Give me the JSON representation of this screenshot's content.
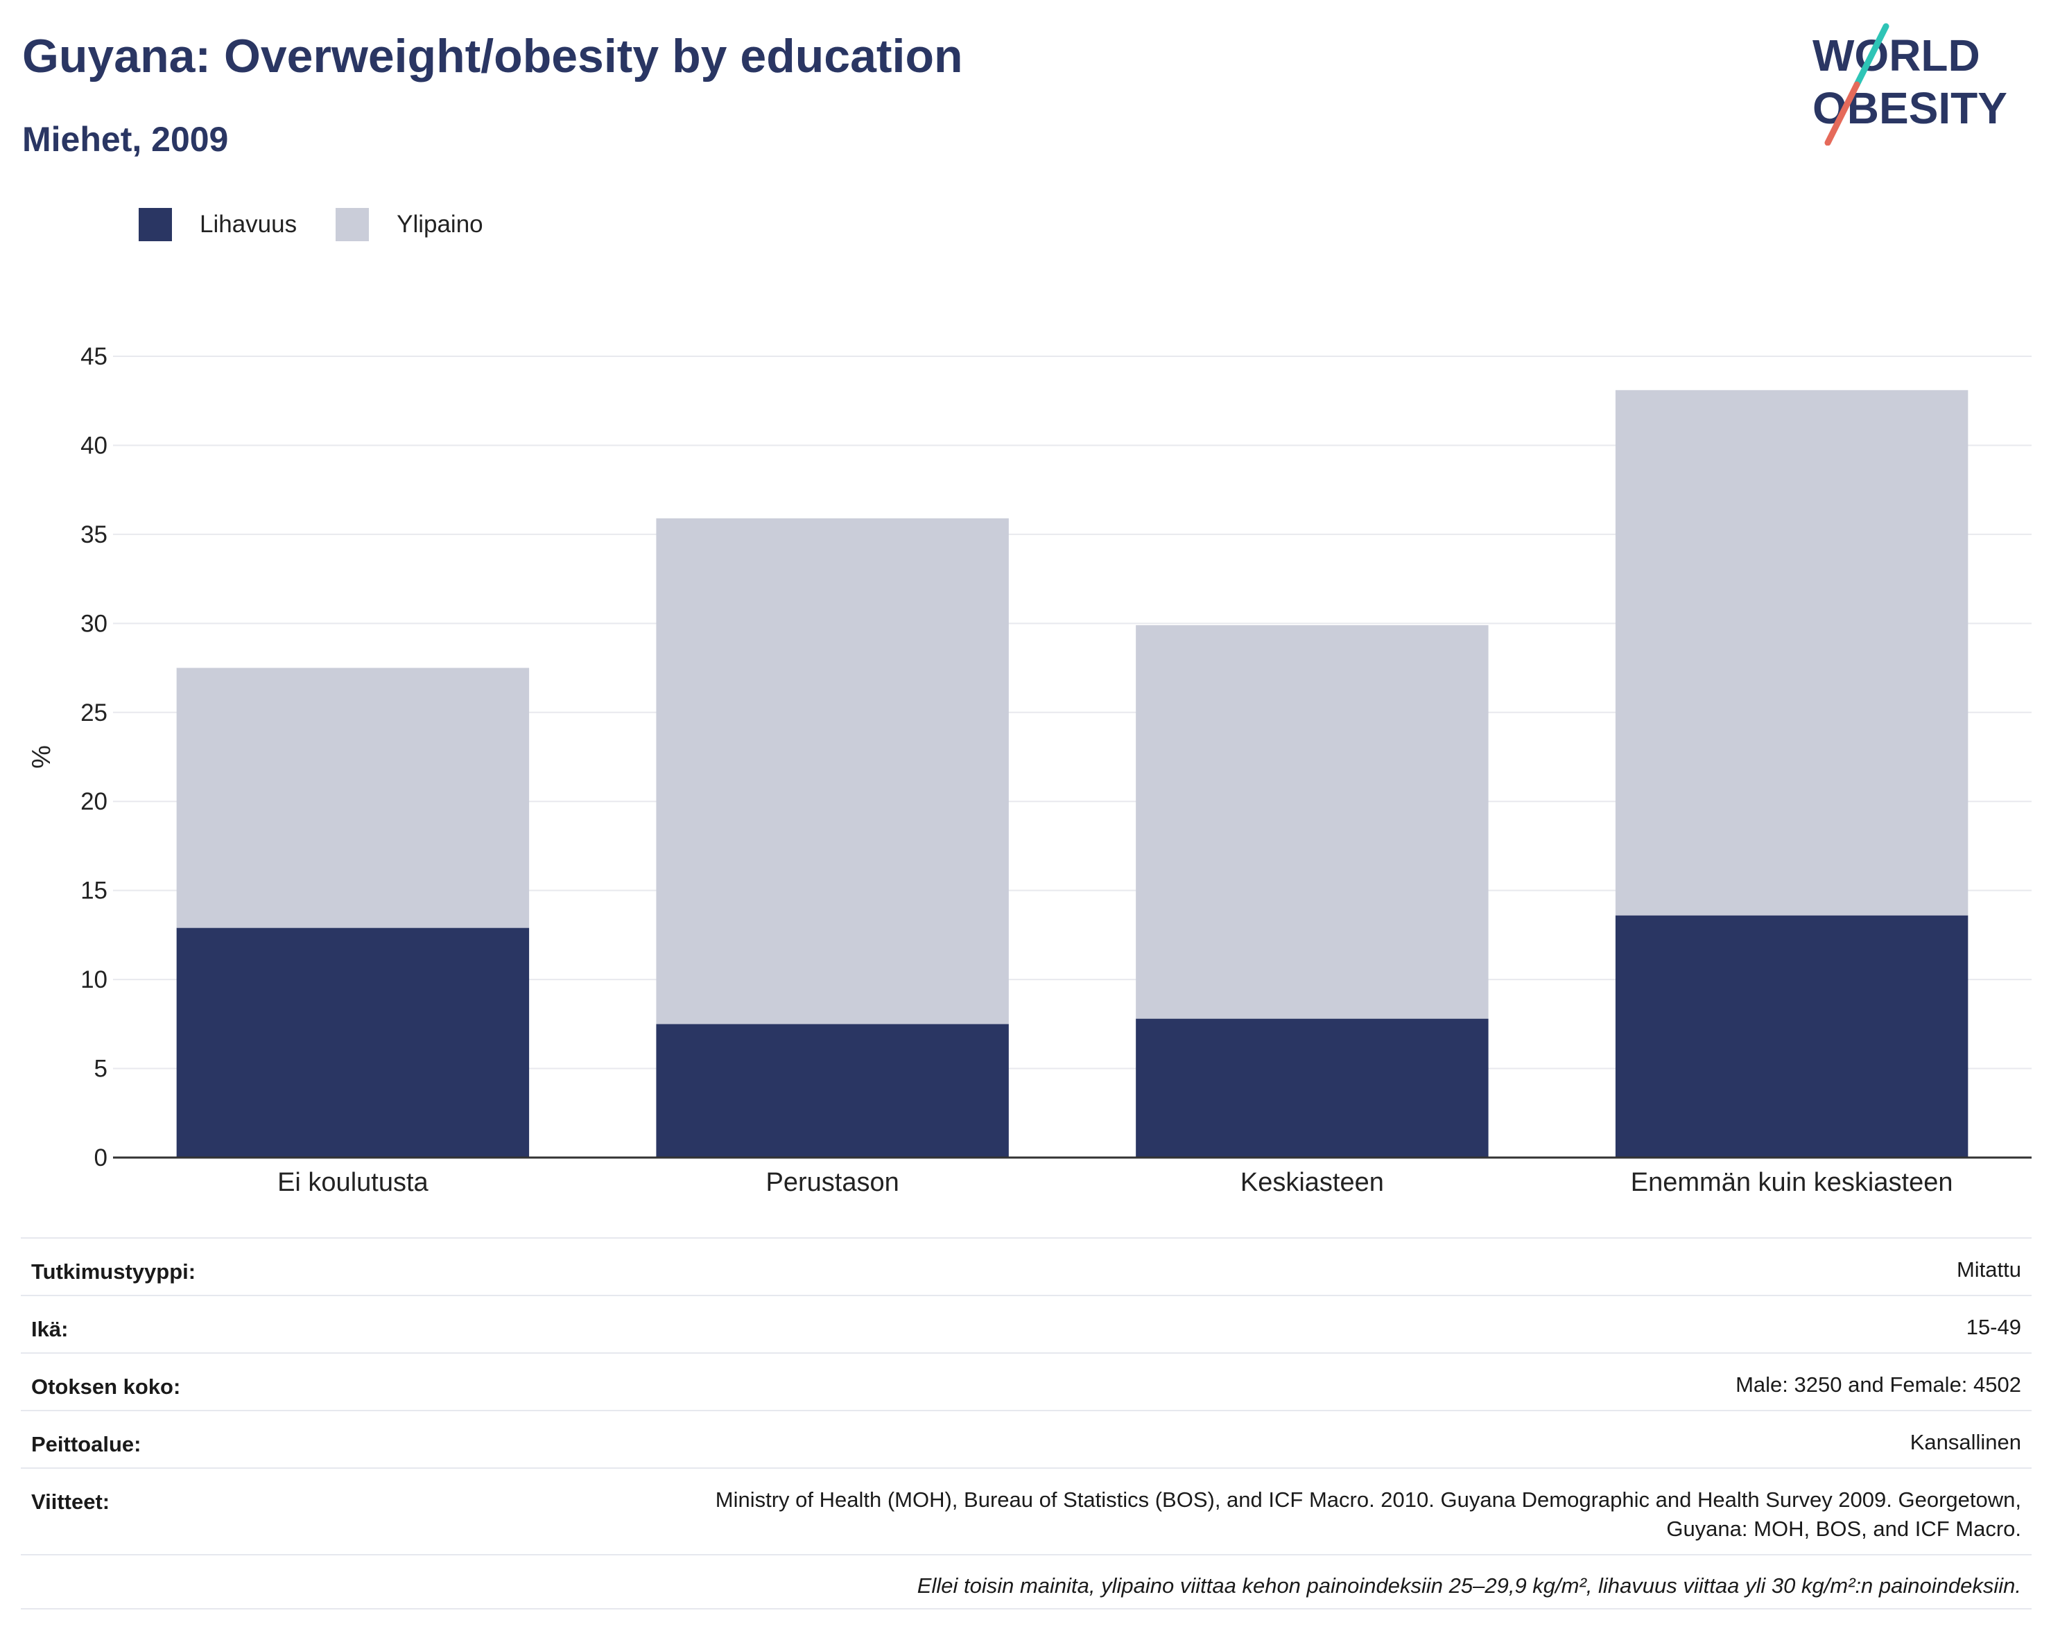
{
  "header": {
    "title": "Guyana: Overweight/obesity by education",
    "subtitle": "Miehet, 2009"
  },
  "logo": {
    "line1": "WORLD",
    "line2": "OBESITY"
  },
  "colors": {
    "obesity": "#2a3663",
    "overweight": "#cacdd9",
    "accent_teal": "#2ec4b6",
    "accent_red": "#e56a5a",
    "grid": "#e8e9ee",
    "axis": "#333333"
  },
  "chart_data": {
    "type": "bar",
    "stacked": true,
    "categories": [
      "Ei koulutusta",
      "Perustason",
      "Keskiasteen",
      "Enemmän kuin keskiasteen"
    ],
    "series": [
      {
        "name": "Lihavuus",
        "values": [
          12.9,
          7.5,
          7.8,
          13.6
        ]
      },
      {
        "name": "Ylipaino",
        "values": [
          14.6,
          28.4,
          22.1,
          29.5
        ]
      }
    ],
    "totals": [
      27.5,
      35.9,
      29.9,
      43.1
    ],
    "ylabel": "%",
    "ylim": [
      0,
      45
    ],
    "yticks": [
      "0",
      "5",
      "10",
      "15",
      "20",
      "25",
      "30",
      "35",
      "40",
      "45"
    ],
    "grid": true,
    "legend": "top-left"
  },
  "info": {
    "rows": [
      {
        "key": "Tutkimustyyppi:",
        "value": "Mitattu"
      },
      {
        "key": "Ikä:",
        "value": "15-49"
      },
      {
        "key": "Otoksen koko:",
        "value": "Male: 3250 and Female: 4502"
      },
      {
        "key": "Peittoalue:",
        "value": "Kansallinen"
      },
      {
        "key": "Viitteet:",
        "value_line1": "Ministry of Health (MOH), Bureau of Statistics (BOS), and ICF Macro. 2010. Guyana Demographic and Health Survey 2009. Georgetown,",
        "value_line2": "Guyana: MOH, BOS, and ICF Macro."
      }
    ],
    "note": "Ellei toisin mainita, ylipaino viittaa kehon painoindeksiin 25–29,9 kg/m², lihavuus viittaa yli 30 kg/m²:n painoindeksiin."
  }
}
